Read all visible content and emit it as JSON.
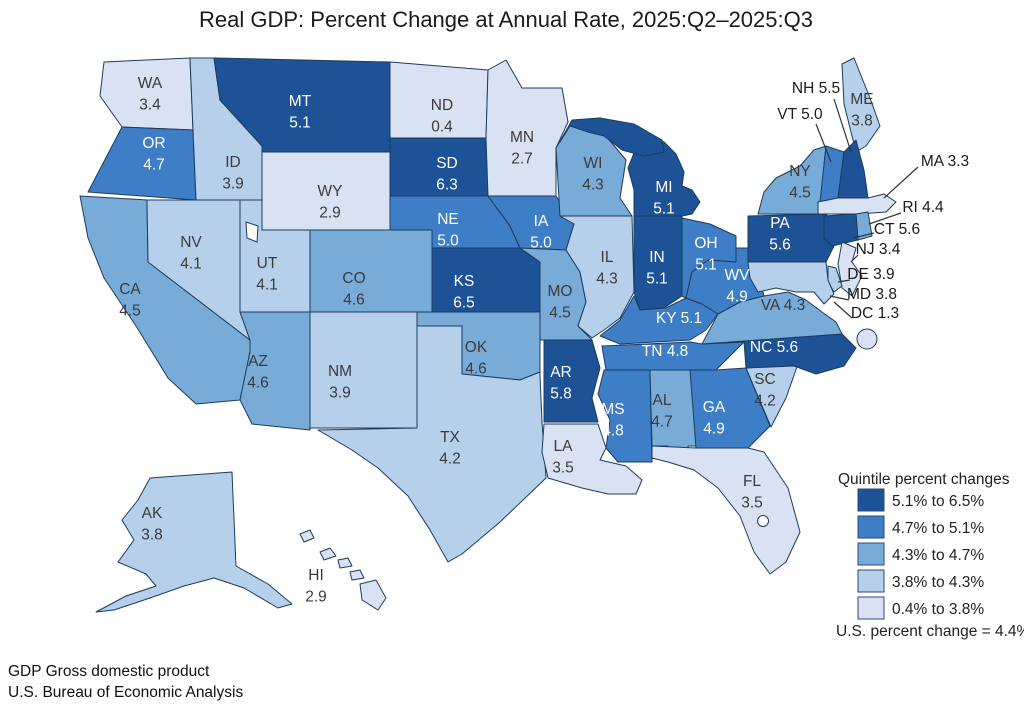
{
  "title": "Real GDP: Percent Change at Annual Rate, 2025:Q2–2025:Q3",
  "legend": {
    "title": "Quintile percent changes",
    "us_note": "U.S. percent change = 4.4%"
  },
  "quintiles": [
    {
      "label": "5.1% to 6.5%",
      "color": "#1d5296"
    },
    {
      "label": "4.7% to 5.1%",
      "color": "#3d7ec6"
    },
    {
      "label": "4.3% to 4.7%",
      "color": "#79abd9"
    },
    {
      "label": "3.8% to 4.3%",
      "color": "#b6cfeb"
    },
    {
      "label": "0.4% to 3.8%",
      "color": "#d9e2f3"
    }
  ],
  "colors": {
    "border": "#1c3c5e",
    "dark_label": "#3b3b3b",
    "light_label": "#ffffff"
  },
  "footer": {
    "line1": "GDP Gross domestic product",
    "line2": "U.S. Bureau of Economic Analysis"
  },
  "states": [
    {
      "abbr": "WA",
      "value": "3.4",
      "quintile": 5
    },
    {
      "abbr": "OR",
      "value": "4.7",
      "quintile": 2
    },
    {
      "abbr": "CA",
      "value": "4.5",
      "quintile": 3
    },
    {
      "abbr": "NV",
      "value": "4.1",
      "quintile": 4
    },
    {
      "abbr": "ID",
      "value": "3.9",
      "quintile": 4
    },
    {
      "abbr": "MT",
      "value": "5.1",
      "quintile": 1
    },
    {
      "abbr": "WY",
      "value": "2.9",
      "quintile": 5
    },
    {
      "abbr": "UT",
      "value": "4.1",
      "quintile": 4
    },
    {
      "abbr": "AZ",
      "value": "4.6",
      "quintile": 3
    },
    {
      "abbr": "CO",
      "value": "4.6",
      "quintile": 3
    },
    {
      "abbr": "NM",
      "value": "3.9",
      "quintile": 4
    },
    {
      "abbr": "ND",
      "value": "0.4",
      "quintile": 5
    },
    {
      "abbr": "SD",
      "value": "6.3",
      "quintile": 1
    },
    {
      "abbr": "NE",
      "value": "5.0",
      "quintile": 2
    },
    {
      "abbr": "KS",
      "value": "6.5",
      "quintile": 1
    },
    {
      "abbr": "OK",
      "value": "4.6",
      "quintile": 3
    },
    {
      "abbr": "TX",
      "value": "4.2",
      "quintile": 4
    },
    {
      "abbr": "MN",
      "value": "2.7",
      "quintile": 5
    },
    {
      "abbr": "IA",
      "value": "5.0",
      "quintile": 2
    },
    {
      "abbr": "MO",
      "value": "4.5",
      "quintile": 3
    },
    {
      "abbr": "AR",
      "value": "5.8",
      "quintile": 1
    },
    {
      "abbr": "LA",
      "value": "3.5",
      "quintile": 5
    },
    {
      "abbr": "WI",
      "value": "4.3",
      "quintile": 3
    },
    {
      "abbr": "IL",
      "value": "4.3",
      "quintile": 4
    },
    {
      "abbr": "MI",
      "value": "5.1",
      "quintile": 1
    },
    {
      "abbr": "IN",
      "value": "5.1",
      "quintile": 1
    },
    {
      "abbr": "OH",
      "value": "5.1",
      "quintile": 2
    },
    {
      "abbr": "KY",
      "value": "5.1",
      "quintile": 2
    },
    {
      "abbr": "TN",
      "value": "4.8",
      "quintile": 2
    },
    {
      "abbr": "MS",
      "value": "4.8",
      "quintile": 2
    },
    {
      "abbr": "AL",
      "value": "4.7",
      "quintile": 3
    },
    {
      "abbr": "GA",
      "value": "4.9",
      "quintile": 2
    },
    {
      "abbr": "FL",
      "value": "3.5",
      "quintile": 5
    },
    {
      "abbr": "SC",
      "value": "4.2",
      "quintile": 4
    },
    {
      "abbr": "NC",
      "value": "5.6",
      "quintile": 1
    },
    {
      "abbr": "VA",
      "value": "4.3",
      "quintile": 3
    },
    {
      "abbr": "WV",
      "value": "4.9",
      "quintile": 2
    },
    {
      "abbr": "PA",
      "value": "5.6",
      "quintile": 1
    },
    {
      "abbr": "NY",
      "value": "4.5",
      "quintile": 3
    },
    {
      "abbr": "ME",
      "value": "3.8",
      "quintile": 4
    },
    {
      "abbr": "VT",
      "value": "5.0",
      "quintile": 2
    },
    {
      "abbr": "NH",
      "value": "5.5",
      "quintile": 1
    },
    {
      "abbr": "MA",
      "value": "3.3",
      "quintile": 5
    },
    {
      "abbr": "RI",
      "value": "4.4",
      "quintile": 3
    },
    {
      "abbr": "CT",
      "value": "5.6",
      "quintile": 1
    },
    {
      "abbr": "NJ",
      "value": "3.4",
      "quintile": 5
    },
    {
      "abbr": "DE",
      "value": "3.9",
      "quintile": 4
    },
    {
      "abbr": "MD",
      "value": "3.8",
      "quintile": 4
    },
    {
      "abbr": "DC",
      "value": "1.3",
      "quintile": 5
    },
    {
      "abbr": "AK",
      "value": "3.8",
      "quintile": 4
    },
    {
      "abbr": "HI",
      "value": "2.9",
      "quintile": 5
    }
  ]
}
